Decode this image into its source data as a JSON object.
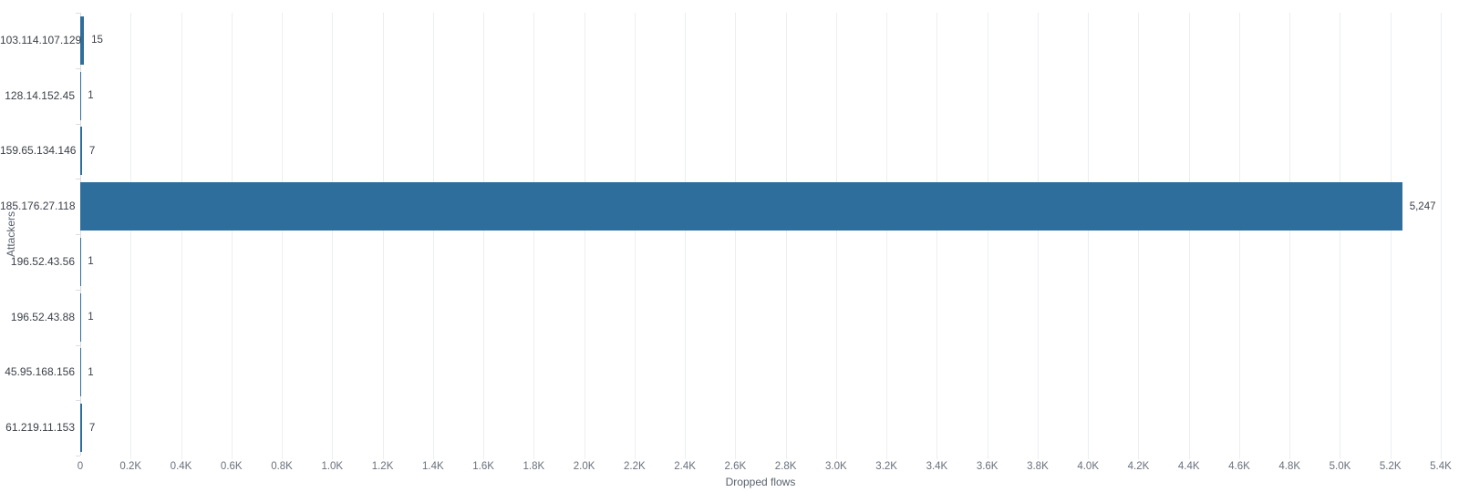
{
  "chart_data": {
    "type": "bar",
    "orientation": "horizontal",
    "categories": [
      "103.114.107.129",
      "128.14.152.45",
      "159.65.134.146",
      "185.176.27.118",
      "196.52.43.56",
      "196.52.43.88",
      "45.95.168.156",
      "61.219.11.153"
    ],
    "values": [
      15,
      1,
      7,
      5247,
      1,
      1,
      1,
      7
    ],
    "value_labels": [
      "15",
      "1",
      "7",
      "5,247",
      "1",
      "1",
      "1",
      "7"
    ],
    "xlabel": "Dropped flows",
    "ylabel": "Attackers",
    "xlim": [
      0,
      5400
    ],
    "x_ticks": [
      "0",
      "0.2K",
      "0.4K",
      "0.6K",
      "0.8K",
      "1.0K",
      "1.2K",
      "1.4K",
      "1.6K",
      "1.8K",
      "2.0K",
      "2.2K",
      "2.4K",
      "2.6K",
      "2.8K",
      "3.0K",
      "3.2K",
      "3.4K",
      "3.6K",
      "3.8K",
      "4.0K",
      "4.2K",
      "4.4K",
      "4.6K",
      "4.8K",
      "5.0K",
      "5.2K",
      "5.4K"
    ],
    "grid": true,
    "legend": "none",
    "colors": {
      "bar": "#2e6e9d",
      "gridline": "#eceef2",
      "axis": "#d9dee5",
      "data_label": "#3b4048",
      "tick_label": "#69707d",
      "axis_title": "#5a626e",
      "background": "#ffffff"
    }
  }
}
